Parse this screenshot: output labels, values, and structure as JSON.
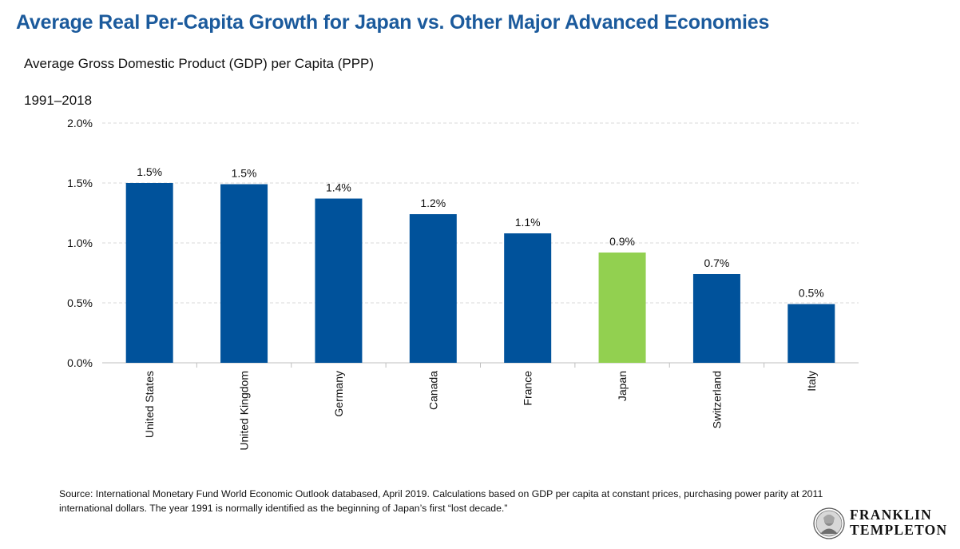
{
  "header": {
    "title": "Average Real Per-Capita Growth for Japan vs. Other Major Advanced Economies",
    "subtitle": "Average Gross Domestic Product (GDP) per Capita (PPP)",
    "period": "1991–2018"
  },
  "chart_data": {
    "type": "bar",
    "categories": [
      "United States",
      "United Kingdom",
      "Germany",
      "Canada",
      "France",
      "Japan",
      "Switzerland",
      "Italy"
    ],
    "values": [
      1.5,
      1.49,
      1.37,
      1.24,
      1.08,
      0.92,
      0.74,
      0.49
    ],
    "data_labels": [
      "1.5%",
      "1.5%",
      "1.4%",
      "1.2%",
      "1.1%",
      "0.9%",
      "0.7%",
      "0.5%"
    ],
    "yticks": [
      "0.0%",
      "0.5%",
      "1.0%",
      "1.5%",
      "2.0%"
    ],
    "ylim": [
      0,
      2.0
    ],
    "grid": true,
    "highlight_category": "Japan",
    "colors": {
      "default": "#00529b",
      "highlight": "#92d050",
      "grid": "#d9d9d9",
      "axis": "#bfbfbf"
    }
  },
  "footer": {
    "source": "Source: International Monetary Fund World Economic Outlook databased, April 2019. Calculations based on GDP per capita at constant prices, purchasing power parity at 2011 international dollars. The year 1991 is normally identified as the beginning of Japan’s first “lost decade.”",
    "logo_text": "FRANKLIN\nTEMPLETON",
    "logo_icon": "franklin-portrait-seal-icon"
  }
}
